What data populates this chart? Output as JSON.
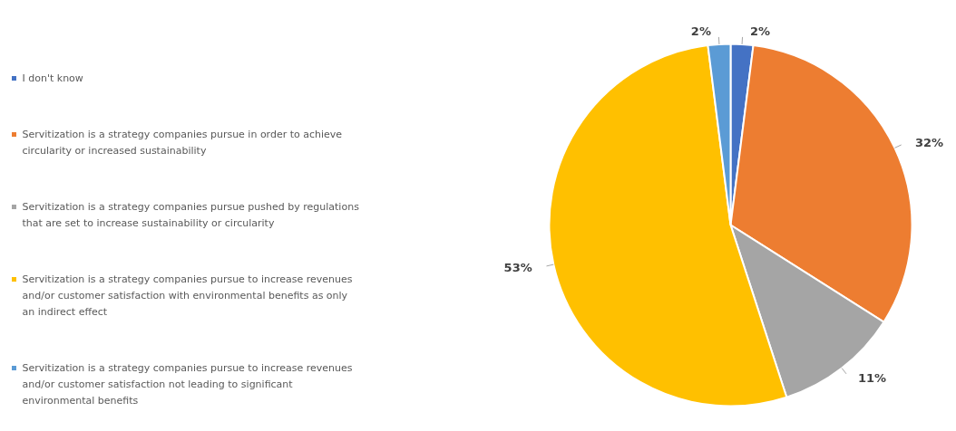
{
  "chart_data": {
    "type": "pie",
    "categories": [
      "I don't know",
      "Servitization is a strategy companies pursue in order to achieve circularity or increased sustainability",
      "Servitization is a strategy companies pursue pushed by regulations that are set to increase sustainability or circularity",
      "Servitization is a strategy companies pursue to increase revenues and/or customer satisfaction with environmental benefits as only an indirect effect",
      "Servitization is a strategy companies pursue to increase revenues and/or customer satisfaction not leading to significant environmental benefits"
    ],
    "values": [
      2,
      32,
      11,
      53,
      2
    ],
    "colors": [
      "#4472c4",
      "#ed7d31",
      "#a5a5a5",
      "#ffc000",
      "#5b9bd5"
    ],
    "value_labels": [
      "2%",
      "32%",
      "11%",
      "53%",
      "2%"
    ],
    "legend": "left"
  }
}
